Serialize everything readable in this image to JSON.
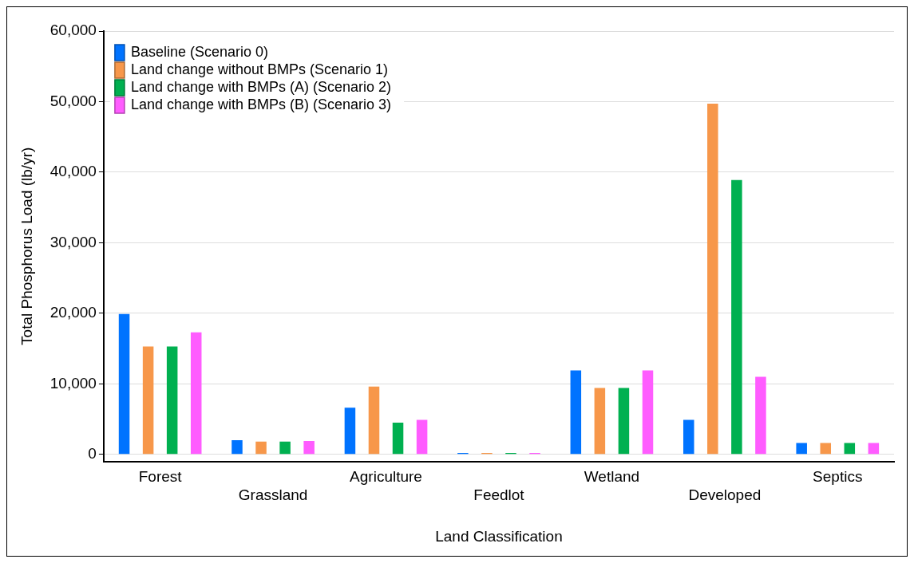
{
  "chart_data": {
    "type": "bar",
    "xlabel": "Land Classification",
    "ylabel": "Total Phosphorus Load (lb/yr)",
    "categories": [
      "Forest",
      "Grassland",
      "Agriculture",
      "Feedlot",
      "Wetland",
      "Developed",
      "Septics"
    ],
    "series": [
      {
        "name": "Baseline (Scenario 0)",
        "color": "#0073ff",
        "values": [
          19900,
          2000,
          6600,
          200,
          11900,
          4900,
          1600
        ]
      },
      {
        "name": "Land change without BMPs (Scenario 1)",
        "color": "#f7974a",
        "values": [
          15300,
          1800,
          9600,
          200,
          9400,
          49700,
          1600
        ]
      },
      {
        "name": "Land change with BMPs (A) (Scenario 2)",
        "color": "#00b050",
        "values": [
          15300,
          1800,
          4500,
          200,
          9400,
          38900,
          1600
        ]
      },
      {
        "name": "Land change with BMPs (B) (Scenario 3)",
        "color": "#ff5cff",
        "values": [
          17300,
          1900,
          4900,
          200,
          11900,
          11000,
          1600
        ]
      }
    ],
    "ylim": [
      -1000,
      60000
    ],
    "yticks": [
      {
        "value": 0,
        "label": "0"
      },
      {
        "value": 10000,
        "label": "10,000"
      },
      {
        "value": 20000,
        "label": "20,000"
      },
      {
        "value": 30000,
        "label": "30,000"
      },
      {
        "value": 40000,
        "label": "40,000"
      },
      {
        "value": 50000,
        "label": "50,000"
      },
      {
        "value": 60000,
        "label": "60,000"
      }
    ],
    "grid": "y",
    "legend": "top left"
  }
}
